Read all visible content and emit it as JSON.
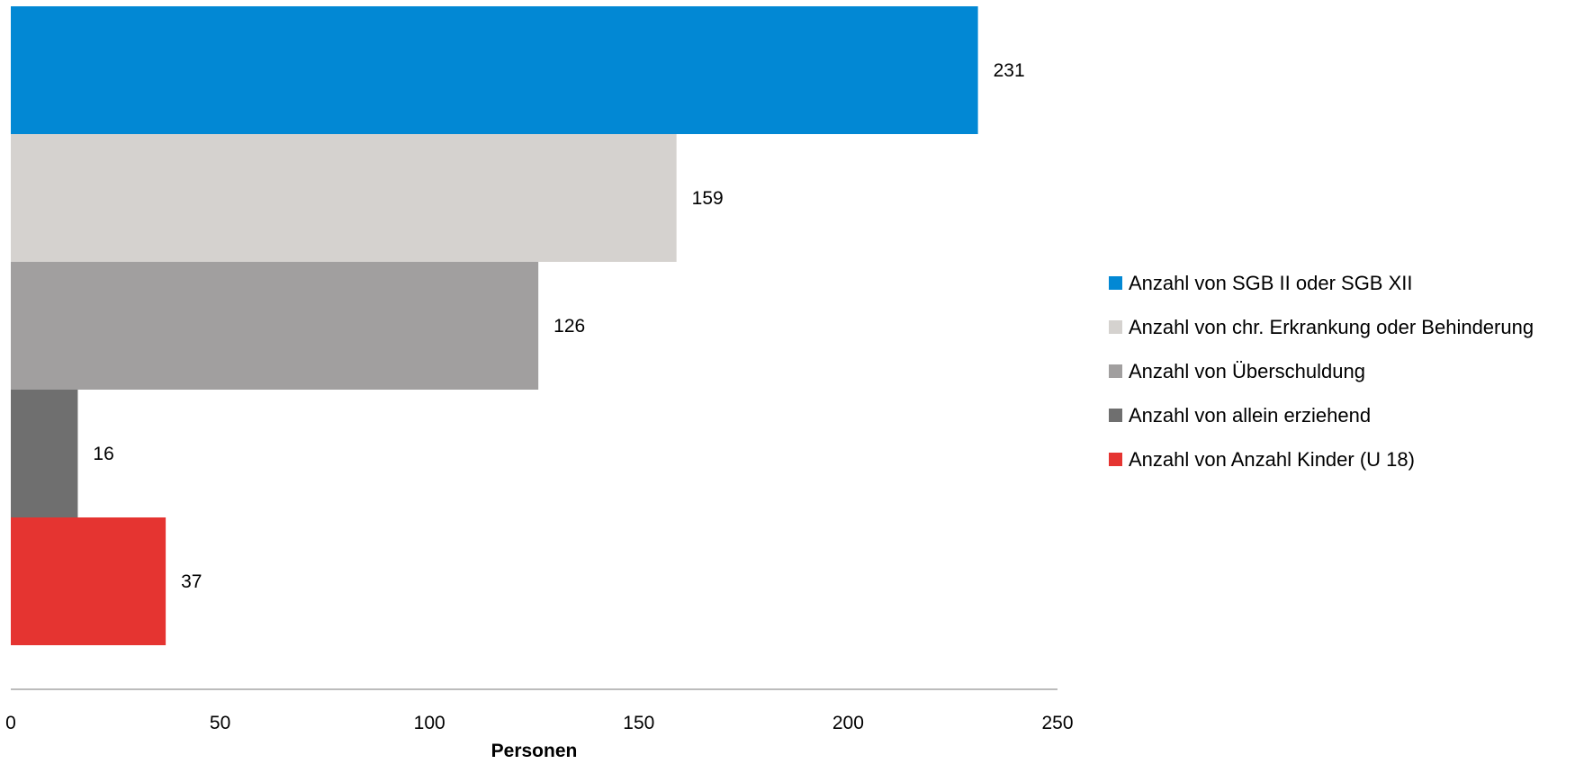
{
  "chart_data": {
    "type": "bar",
    "orientation": "horizontal",
    "title": "",
    "xlabel": "Personen",
    "ylabel": "",
    "xlim": [
      0,
      250
    ],
    "x_ticks": [
      "0",
      "50",
      "100",
      "150",
      "200",
      "250"
    ],
    "grid": false,
    "legend_position": "right",
    "series": [
      {
        "name": "Anzahl von SGB II oder SGB XII",
        "value": 231,
        "label": "231",
        "color": "#0288d4"
      },
      {
        "name": "Anzahl von chr. Erkrankung oder Behinderung",
        "value": 159,
        "label": "159",
        "color": "#d5d2cf"
      },
      {
        "name": "Anzahl von Überschuldung",
        "value": 126,
        "label": "126",
        "color": "#a19f9f"
      },
      {
        "name": "Anzahl von allein erziehend",
        "value": 16,
        "label": "16",
        "color": "#6f6f6f"
      },
      {
        "name": "Anzahl von Anzahl Kinder (U 18)",
        "value": 37,
        "label": "37",
        "color": "#e53431"
      }
    ]
  }
}
